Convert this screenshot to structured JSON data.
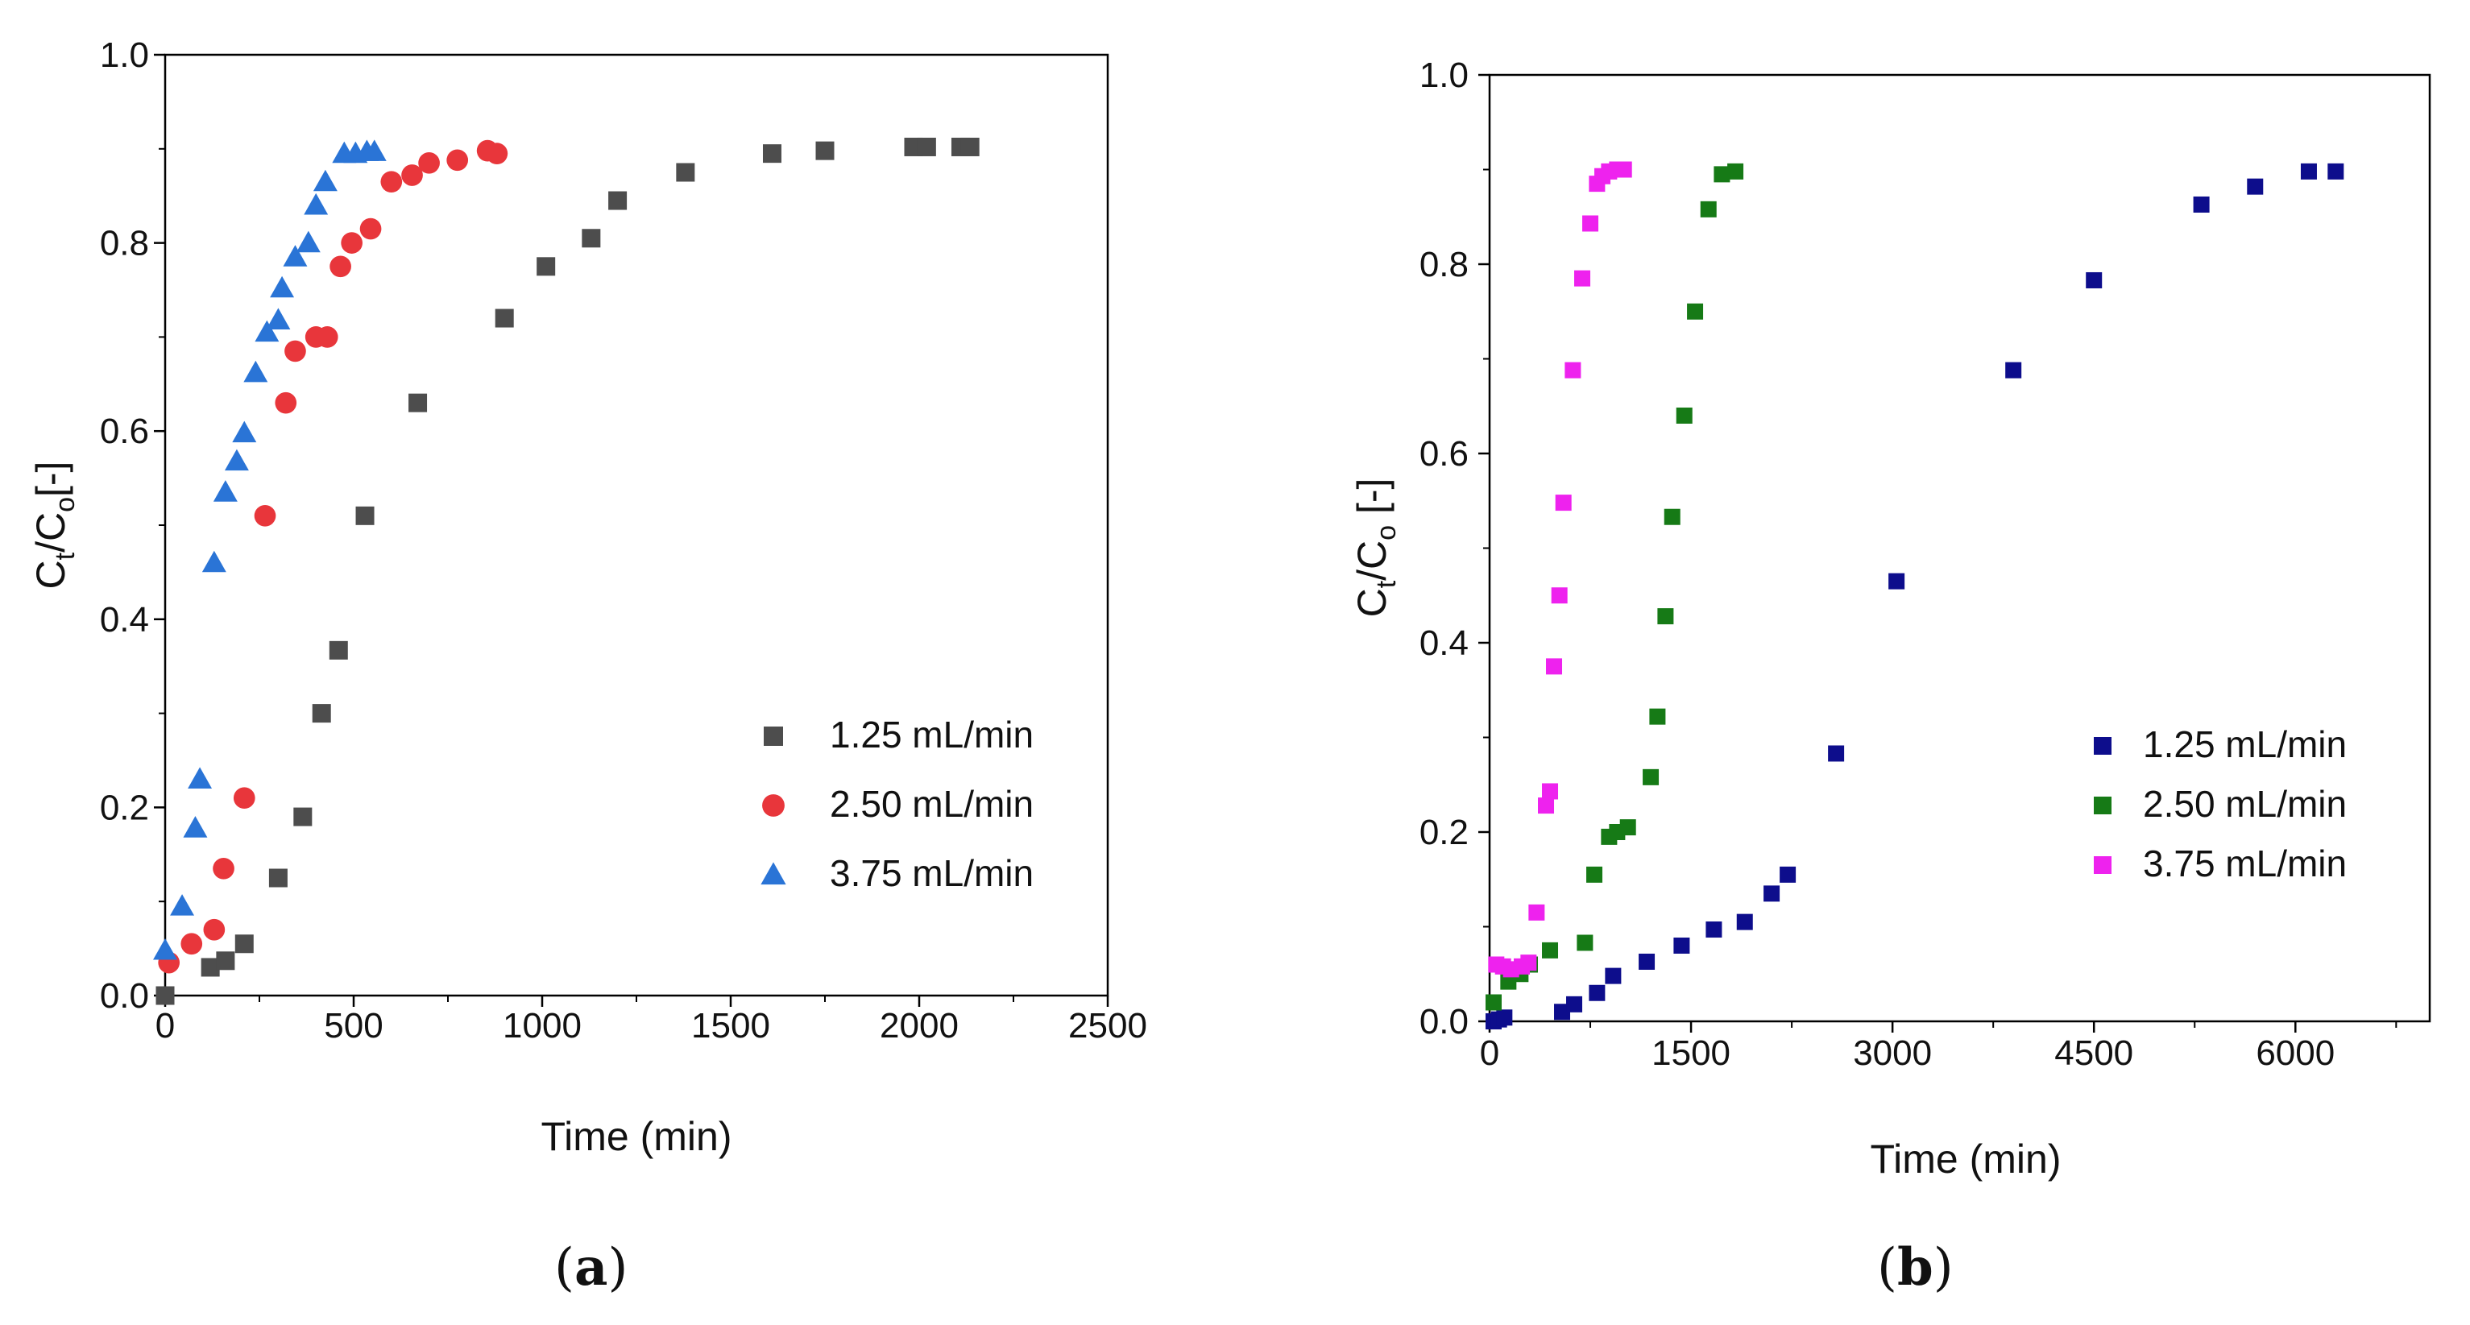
{
  "chart_data": [
    {
      "panel": "a",
      "type": "scatter",
      "title": "",
      "xlabel": "Time (min)",
      "ylabel": {
        "main": "C",
        "sub1": "t",
        "mid": "/C",
        "sub2": "o",
        "tail": "[-]"
      },
      "xlim": [
        0,
        2500
      ],
      "ylim": [
        0,
        1.0
      ],
      "xticks": [
        0,
        500,
        1000,
        1500,
        2000,
        2500
      ],
      "yticks": [
        "0.0",
        "0.2",
        "0.4",
        "0.6",
        "0.8",
        "1.0"
      ],
      "legend_position": "lower-right",
      "series": [
        {
          "name": "1.25 mL/min",
          "marker": "square",
          "color": "#4d4d4d",
          "points": [
            [
              0,
              0.0
            ],
            [
              120,
              0.03
            ],
            [
              160,
              0.037
            ],
            [
              210,
              0.055
            ],
            [
              300,
              0.125
            ],
            [
              365,
              0.19
            ],
            [
              415,
              0.3
            ],
            [
              460,
              0.367
            ],
            [
              530,
              0.51
            ],
            [
              670,
              0.63
            ],
            [
              900,
              0.72
            ],
            [
              1010,
              0.775
            ],
            [
              1130,
              0.805
            ],
            [
              1200,
              0.845
            ],
            [
              1380,
              0.875
            ],
            [
              1610,
              0.895
            ],
            [
              1750,
              0.898
            ],
            [
              1985,
              0.902
            ],
            [
              2020,
              0.902
            ],
            [
              2110,
              0.902
            ],
            [
              2135,
              0.902
            ]
          ]
        },
        {
          "name": "2.50 mL/min",
          "marker": "circle",
          "color": "#e8363b",
          "points": [
            [
              10,
              0.035
            ],
            [
              70,
              0.055
            ],
            [
              130,
              0.07
            ],
            [
              155,
              0.135
            ],
            [
              210,
              0.21
            ],
            [
              265,
              0.51
            ],
            [
              320,
              0.63
            ],
            [
              345,
              0.685
            ],
            [
              400,
              0.7
            ],
            [
              430,
              0.7
            ],
            [
              465,
              0.775
            ],
            [
              495,
              0.8
            ],
            [
              545,
              0.815
            ],
            [
              600,
              0.865
            ],
            [
              655,
              0.872
            ],
            [
              700,
              0.885
            ],
            [
              775,
              0.888
            ],
            [
              855,
              0.898
            ],
            [
              880,
              0.895
            ]
          ]
        },
        {
          "name": "3.75 mL/min",
          "marker": "triangle",
          "color": "#2a74d6",
          "points": [
            [
              0,
              0.048
            ],
            [
              45,
              0.095
            ],
            [
              80,
              0.178
            ],
            [
              92,
              0.23
            ],
            [
              130,
              0.46
            ],
            [
              160,
              0.535
            ],
            [
              190,
              0.568
            ],
            [
              210,
              0.598
            ],
            [
              240,
              0.662
            ],
            [
              270,
              0.705
            ],
            [
              300,
              0.718
            ],
            [
              310,
              0.752
            ],
            [
              345,
              0.785
            ],
            [
              380,
              0.8
            ],
            [
              400,
              0.84
            ],
            [
              425,
              0.865
            ],
            [
              475,
              0.895
            ],
            [
              505,
              0.895
            ],
            [
              535,
              0.897
            ],
            [
              555,
              0.897
            ]
          ]
        }
      ]
    },
    {
      "panel": "b",
      "type": "scatter",
      "title": "",
      "xlabel": "Time (min)",
      "ylabel": {
        "main": "C",
        "sub1": "t",
        "mid": "/C",
        "sub2": "o",
        "tail": " [-]"
      },
      "xlim": [
        0,
        7000
      ],
      "ylim": [
        0,
        1.0
      ],
      "xticks": [
        0,
        1500,
        3000,
        4500,
        6000
      ],
      "yticks": [
        "0.0",
        "0.2",
        "0.4",
        "0.6",
        "0.8",
        "1.0"
      ],
      "legend_position": "lower-right",
      "series": [
        {
          "name": "1.25 mL/min",
          "marker": "square",
          "color": "#0d0d8c",
          "points": [
            [
              30,
              0.0
            ],
            [
              70,
              0.002
            ],
            [
              110,
              0.004
            ],
            [
              540,
              0.01
            ],
            [
              630,
              0.018
            ],
            [
              800,
              0.03
            ],
            [
              920,
              0.048
            ],
            [
              1170,
              0.063
            ],
            [
              1430,
              0.08
            ],
            [
              1670,
              0.097
            ],
            [
              1900,
              0.105
            ],
            [
              2100,
              0.135
            ],
            [
              2220,
              0.155
            ],
            [
              2580,
              0.283
            ],
            [
              3030,
              0.465
            ],
            [
              3900,
              0.688
            ],
            [
              4500,
              0.783
            ],
            [
              5300,
              0.863
            ],
            [
              5700,
              0.882
            ],
            [
              6100,
              0.898
            ],
            [
              6300,
              0.898
            ]
          ]
        },
        {
          "name": "2.50 mL/min",
          "marker": "square",
          "color": "#167a16",
          "points": [
            [
              30,
              0.02
            ],
            [
              140,
              0.042
            ],
            [
              230,
              0.05
            ],
            [
              300,
              0.06
            ],
            [
              450,
              0.075
            ],
            [
              710,
              0.083
            ],
            [
              780,
              0.155
            ],
            [
              890,
              0.195
            ],
            [
              950,
              0.2
            ],
            [
              1030,
              0.205
            ],
            [
              1200,
              0.258
            ],
            [
              1250,
              0.322
            ],
            [
              1310,
              0.428
            ],
            [
              1360,
              0.533
            ],
            [
              1450,
              0.64
            ],
            [
              1530,
              0.75
            ],
            [
              1630,
              0.858
            ],
            [
              1730,
              0.895
            ],
            [
              1830,
              0.898
            ]
          ]
        },
        {
          "name": "3.75 mL/min",
          "marker": "square",
          "color": "#ee22ee",
          "points": [
            [
              50,
              0.06
            ],
            [
              100,
              0.058
            ],
            [
              160,
              0.055
            ],
            [
              240,
              0.058
            ],
            [
              290,
              0.062
            ],
            [
              350,
              0.115
            ],
            [
              420,
              0.228
            ],
            [
              450,
              0.243
            ],
            [
              480,
              0.375
            ],
            [
              520,
              0.45
            ],
            [
              550,
              0.548
            ],
            [
              620,
              0.688
            ],
            [
              690,
              0.785
            ],
            [
              750,
              0.843
            ],
            [
              800,
              0.885
            ],
            [
              840,
              0.893
            ],
            [
              890,
              0.898
            ],
            [
              950,
              0.9
            ],
            [
              1000,
              0.9
            ]
          ]
        }
      ]
    }
  ],
  "captions": {
    "a": {
      "open": "(",
      "letter": "a",
      "close": ")"
    },
    "b": {
      "open": "(",
      "letter": "b",
      "close": ")"
    }
  }
}
